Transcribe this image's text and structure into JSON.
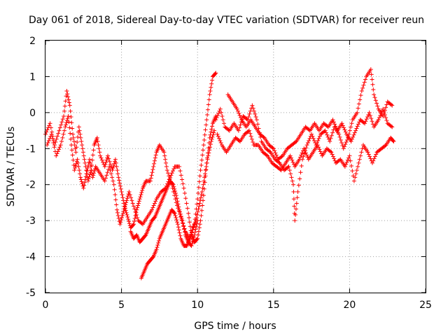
{
  "chart_data": {
    "type": "scatter",
    "title": "Day 061 of 2018, Sidereal Day-to-day VTEC variation (SDTVAR) for receiver reun",
    "xlabel": "GPS time / hours",
    "ylabel": "SDTVAR / TECUs",
    "xlim": [
      0,
      25
    ],
    "ylim": [
      -5,
      2
    ],
    "xticks": [
      0,
      5,
      10,
      15,
      20,
      25
    ],
    "yticks": [
      -5,
      -4,
      -3,
      -2,
      -1,
      0,
      1,
      2
    ],
    "grid": true,
    "marker": "+",
    "color": "#ff0000",
    "series": [
      {
        "name": "SDTVAR",
        "tracks": [
          [
            [
              0.0,
              -0.6
            ],
            [
              0.3,
              -0.3
            ],
            [
              0.6,
              -0.9
            ],
            [
              0.9,
              -0.5
            ],
            [
              1.2,
              -0.1
            ],
            [
              1.4,
              0.6
            ],
            [
              1.6,
              0.2
            ],
            [
              1.8,
              -0.6
            ],
            [
              2.0,
              -1.1
            ],
            [
              2.2,
              -0.4
            ],
            [
              2.4,
              -0.9
            ],
            [
              2.6,
              -1.4
            ],
            [
              2.8,
              -1.9
            ],
            [
              3.0,
              -1.6
            ],
            [
              3.2,
              -0.9
            ],
            [
              3.4,
              -0.7
            ],
            [
              3.6,
              -1.2
            ],
            [
              3.9,
              -1.5
            ],
            [
              4.1,
              -1.2
            ],
            [
              4.4,
              -1.6
            ],
            [
              4.6,
              -1.3
            ],
            [
              4.8,
              -1.8
            ],
            [
              5.0,
              -2.2
            ],
            [
              5.2,
              -2.6
            ],
            [
              5.4,
              -2.9
            ],
            [
              5.6,
              -3.2
            ],
            [
              5.8,
              -3.1
            ],
            [
              6.0,
              -2.7
            ],
            [
              6.2,
              -2.4
            ],
            [
              6.4,
              -2.1
            ],
            [
              6.6,
              -1.9
            ],
            [
              6.9,
              -1.9
            ],
            [
              7.1,
              -1.5
            ],
            [
              7.3,
              -1.1
            ],
            [
              7.5,
              -0.9
            ],
            [
              7.8,
              -1.1
            ],
            [
              8.0,
              -1.6
            ],
            [
              8.3,
              -2.0
            ],
            [
              8.6,
              -2.5
            ],
            [
              8.9,
              -2.9
            ],
            [
              9.2,
              -3.3
            ],
            [
              9.5,
              -3.5
            ],
            [
              9.8,
              -3.1
            ],
            [
              10.0,
              -2.4
            ],
            [
              10.2,
              -1.6
            ],
            [
              10.4,
              -0.9
            ],
            [
              10.6,
              -0.2
            ],
            [
              10.8,
              0.5
            ],
            [
              11.0,
              1.0
            ],
            [
              11.2,
              1.1
            ]
          ],
          [
            [
              0.1,
              -0.9
            ],
            [
              0.4,
              -0.6
            ],
            [
              0.7,
              -1.2
            ],
            [
              1.0,
              -0.9
            ],
            [
              1.3,
              -0.4
            ],
            [
              1.5,
              -0.1
            ],
            [
              1.7,
              -0.9
            ],
            [
              1.9,
              -1.6
            ],
            [
              2.1,
              -1.3
            ],
            [
              2.3,
              -1.8
            ],
            [
              2.5,
              -2.1
            ],
            [
              2.7,
              -1.7
            ],
            [
              2.9,
              -1.3
            ],
            [
              3.1,
              -1.8
            ],
            [
              3.3,
              -1.5
            ],
            [
              3.6,
              -1.7
            ],
            [
              3.9,
              -1.9
            ],
            [
              4.2,
              -1.5
            ],
            [
              4.5,
              -2.0
            ],
            [
              4.7,
              -2.7
            ],
            [
              4.9,
              -3.1
            ],
            [
              5.1,
              -2.8
            ],
            [
              5.3,
              -2.5
            ],
            [
              5.5,
              -2.2
            ],
            [
              5.8,
              -2.6
            ],
            [
              6.1,
              -3.0
            ],
            [
              6.4,
              -3.1
            ],
            [
              6.7,
              -2.9
            ],
            [
              7.0,
              -2.7
            ],
            [
              7.3,
              -2.4
            ],
            [
              7.6,
              -2.2
            ],
            [
              7.9,
              -2.1
            ],
            [
              8.2,
              -1.8
            ],
            [
              8.5,
              -1.5
            ],
            [
              8.8,
              -1.5
            ],
            [
              9.1,
              -2.1
            ],
            [
              9.4,
              -2.8
            ],
            [
              9.6,
              -3.4
            ],
            [
              9.8,
              -3.6
            ],
            [
              10.0,
              -3.5
            ],
            [
              10.2,
              -3.0
            ],
            [
              10.4,
              -2.3
            ],
            [
              10.6,
              -1.4
            ],
            [
              10.8,
              -0.7
            ],
            [
              11.0,
              -0.3
            ],
            [
              11.2,
              -0.1
            ]
          ],
          [
            [
              5.6,
              -3.3
            ],
            [
              5.8,
              -3.5
            ],
            [
              6.0,
              -3.4
            ],
            [
              6.2,
              -3.6
            ],
            [
              6.4,
              -3.5
            ],
            [
              6.6,
              -3.4
            ],
            [
              6.8,
              -3.2
            ],
            [
              7.0,
              -3.0
            ],
            [
              7.2,
              -2.9
            ],
            [
              7.4,
              -2.7
            ],
            [
              7.6,
              -2.5
            ],
            [
              7.8,
              -2.3
            ],
            [
              8.0,
              -2.1
            ],
            [
              8.2,
              -1.9
            ],
            [
              8.4,
              -2.0
            ],
            [
              8.6,
              -2.3
            ],
            [
              8.8,
              -2.7
            ],
            [
              9.0,
              -3.0
            ],
            [
              9.2,
              -3.4
            ],
            [
              9.4,
              -3.6
            ],
            [
              9.6,
              -3.7
            ],
            [
              9.8,
              -3.4
            ],
            [
              10.0,
              -3.0
            ]
          ],
          [
            [
              6.3,
              -4.6
            ],
            [
              6.5,
              -4.4
            ],
            [
              6.7,
              -4.2
            ],
            [
              6.9,
              -4.1
            ],
            [
              7.1,
              -4.0
            ],
            [
              7.3,
              -3.8
            ],
            [
              7.5,
              -3.5
            ],
            [
              7.7,
              -3.3
            ],
            [
              7.9,
              -3.1
            ],
            [
              8.1,
              -2.9
            ],
            [
              8.3,
              -2.7
            ],
            [
              8.5,
              -2.8
            ],
            [
              8.7,
              -3.1
            ],
            [
              8.9,
              -3.5
            ],
            [
              9.1,
              -3.7
            ],
            [
              9.3,
              -3.7
            ],
            [
              9.5,
              -3.5
            ],
            [
              9.7,
              -3.2
            ],
            [
              9.9,
              -3.0
            ],
            [
              10.1,
              -2.6
            ],
            [
              10.3,
              -2.2
            ],
            [
              10.5,
              -1.7
            ],
            [
              10.7,
              -1.2
            ],
            [
              10.9,
              -0.8
            ],
            [
              11.1,
              -0.5
            ]
          ],
          [
            [
              11.2,
              -0.2
            ],
            [
              11.5,
              0.1
            ],
            [
              11.8,
              -0.4
            ],
            [
              12.1,
              -0.5
            ],
            [
              12.4,
              -0.3
            ],
            [
              12.7,
              -0.5
            ],
            [
              13.0,
              -0.1
            ],
            [
              13.3,
              -0.2
            ],
            [
              13.6,
              0.2
            ],
            [
              13.9,
              -0.2
            ],
            [
              14.2,
              -0.8
            ],
            [
              14.5,
              -1.0
            ],
            [
              14.8,
              -1.1
            ],
            [
              15.1,
              -1.3
            ],
            [
              15.4,
              -1.4
            ],
            [
              15.7,
              -1.6
            ],
            [
              16.0,
              -1.5
            ],
            [
              16.3,
              -2.0
            ],
            [
              16.4,
              -3.0
            ],
            [
              16.6,
              -2.2
            ],
            [
              16.9,
              -1.3
            ],
            [
              17.2,
              -0.9
            ],
            [
              17.5,
              -0.6
            ],
            [
              17.8,
              -0.9
            ],
            [
              18.1,
              -0.6
            ],
            [
              18.4,
              -0.5
            ],
            [
              18.7,
              -0.8
            ],
            [
              19.0,
              -0.4
            ],
            [
              19.3,
              -0.6
            ],
            [
              19.6,
              -1.0
            ],
            [
              19.9,
              -0.7
            ],
            [
              20.2,
              -0.2
            ],
            [
              20.5,
              0.0
            ],
            [
              20.8,
              0.6
            ],
            [
              21.1,
              1.0
            ],
            [
              21.4,
              1.2
            ],
            [
              21.6,
              0.5
            ],
            [
              21.9,
              0.1
            ],
            [
              22.2,
              -0.1
            ],
            [
              22.5,
              0.3
            ],
            [
              22.8,
              0.2
            ]
          ],
          [
            [
              11.3,
              -0.6
            ],
            [
              11.6,
              -0.9
            ],
            [
              11.9,
              -1.1
            ],
            [
              12.2,
              -0.9
            ],
            [
              12.5,
              -0.7
            ],
            [
              12.8,
              -0.8
            ],
            [
              13.1,
              -0.6
            ],
            [
              13.4,
              -0.5
            ],
            [
              13.7,
              -0.9
            ],
            [
              14.0,
              -0.9
            ],
            [
              14.3,
              -1.1
            ],
            [
              14.6,
              -1.2
            ],
            [
              14.9,
              -1.4
            ],
            [
              15.2,
              -1.5
            ],
            [
              15.5,
              -1.6
            ],
            [
              15.8,
              -1.4
            ],
            [
              16.1,
              -1.2
            ],
            [
              16.4,
              -1.5
            ],
            [
              16.7,
              -1.3
            ],
            [
              17.0,
              -1.0
            ],
            [
              17.3,
              -1.3
            ],
            [
              17.6,
              -1.1
            ],
            [
              17.9,
              -0.9
            ],
            [
              18.2,
              -1.2
            ],
            [
              18.5,
              -1.0
            ],
            [
              18.8,
              -1.1
            ],
            [
              19.1,
              -1.4
            ],
            [
              19.4,
              -1.3
            ],
            [
              19.7,
              -1.5
            ],
            [
              20.0,
              -1.2
            ],
            [
              20.3,
              -1.9
            ],
            [
              20.6,
              -1.4
            ],
            [
              20.9,
              -0.9
            ],
            [
              21.2,
              -1.1
            ],
            [
              21.5,
              -1.4
            ],
            [
              21.8,
              -1.1
            ],
            [
              22.1,
              -1.0
            ],
            [
              22.4,
              -0.9
            ],
            [
              22.7,
              -0.7
            ],
            [
              22.9,
              -0.8
            ]
          ],
          [
            [
              12.0,
              0.5
            ],
            [
              12.3,
              0.3
            ],
            [
              12.6,
              0.1
            ],
            [
              12.9,
              -0.2
            ],
            [
              13.2,
              -0.4
            ],
            [
              13.5,
              -0.2
            ],
            [
              13.8,
              -0.4
            ],
            [
              14.1,
              -0.6
            ],
            [
              14.4,
              -0.7
            ],
            [
              14.7,
              -0.9
            ],
            [
              15.0,
              -1.0
            ],
            [
              15.3,
              -1.3
            ],
            [
              15.6,
              -1.2
            ],
            [
              15.9,
              -1.0
            ],
            [
              16.2,
              -0.9
            ],
            [
              16.5,
              -0.8
            ],
            [
              16.8,
              -0.6
            ],
            [
              17.1,
              -0.4
            ],
            [
              17.4,
              -0.5
            ],
            [
              17.7,
              -0.3
            ],
            [
              18.0,
              -0.5
            ],
            [
              18.3,
              -0.3
            ],
            [
              18.6,
              -0.4
            ],
            [
              18.9,
              -0.2
            ],
            [
              19.2,
              -0.5
            ],
            [
              19.5,
              -0.3
            ],
            [
              19.8,
              -0.6
            ],
            [
              20.1,
              -0.8
            ],
            [
              20.4,
              -0.5
            ],
            [
              20.7,
              -0.2
            ],
            [
              21.0,
              -0.3
            ],
            [
              21.3,
              0.0
            ],
            [
              21.6,
              -0.4
            ],
            [
              21.9,
              -0.2
            ],
            [
              22.2,
              0.1
            ],
            [
              22.5,
              -0.3
            ],
            [
              22.8,
              -0.4
            ]
          ]
        ]
      }
    ]
  }
}
